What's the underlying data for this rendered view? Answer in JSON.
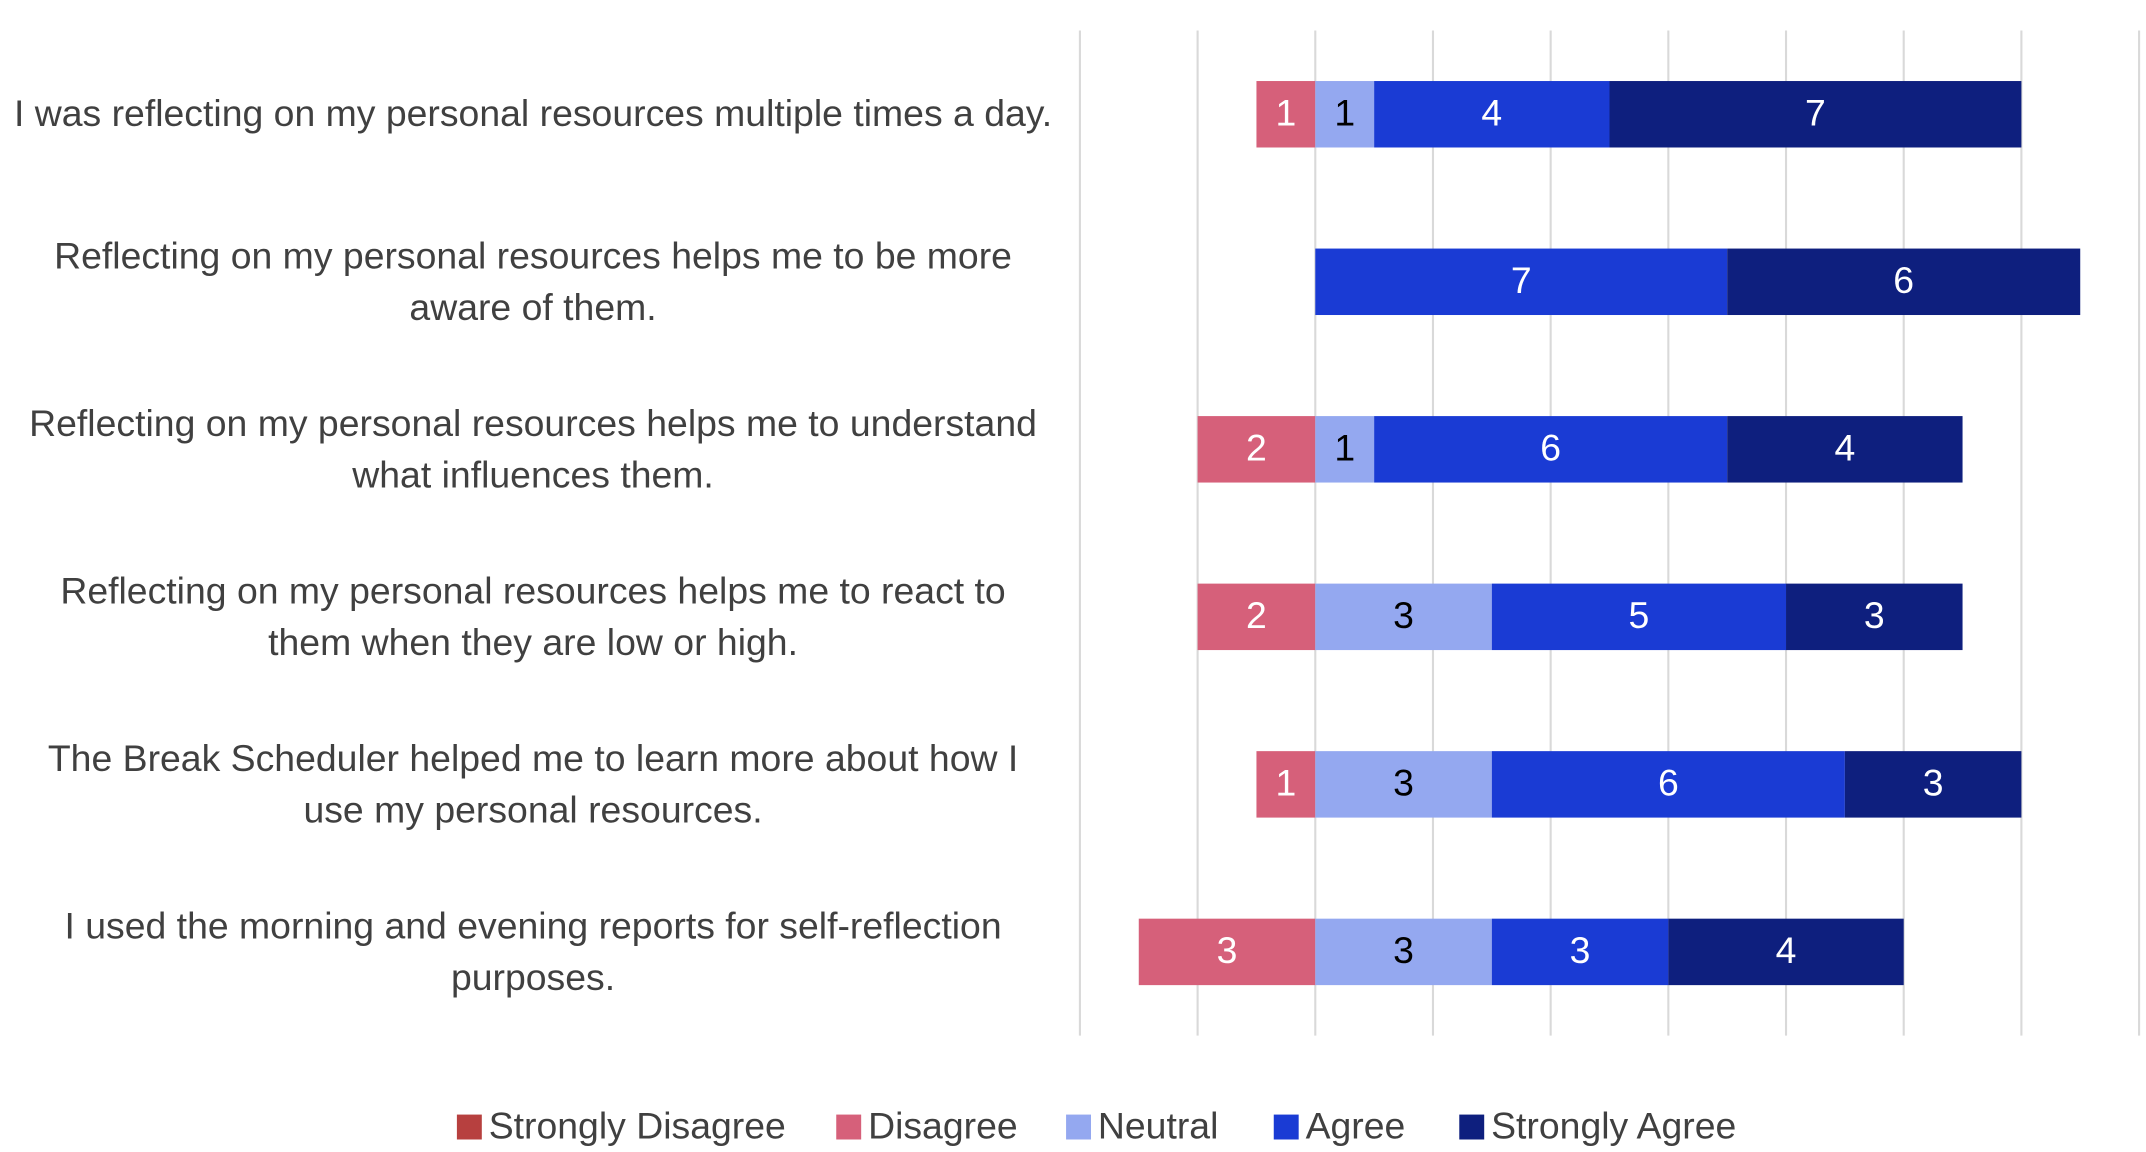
{
  "chart_data": {
    "type": "diverging-bar",
    "categories": [
      "I was reflecting on my personal resources multiple times a day.",
      "Reflecting on my personal resources helps me to be more aware of them.",
      "Reflecting on my personal resources helps me to understand what influences them.",
      "Reflecting on my personal resources helps me to react to them when they are low or high.",
      "The Break Scheduler helped me to learn more about how I use my personal resources.",
      "I used the morning and evening reports for self-reflection purposes."
    ],
    "series": [
      {
        "name": "Strongly Disagree",
        "color": "#b7403f",
        "values": [
          0,
          0,
          0,
          0,
          0,
          0
        ]
      },
      {
        "name": "Disagree",
        "color": "#d6607a",
        "values": [
          1,
          0,
          2,
          2,
          1,
          3
        ]
      },
      {
        "name": "Neutral",
        "color": "#94a8f0",
        "values": [
          1,
          0,
          1,
          3,
          3,
          3
        ]
      },
      {
        "name": "Agree",
        "color": "#1a3bd4",
        "values": [
          4,
          7,
          6,
          5,
          6,
          3
        ]
      },
      {
        "name": "Strongly Agree",
        "color": "#0e1f7e",
        "values": [
          7,
          6,
          4,
          3,
          3,
          4
        ]
      }
    ],
    "xlim": [
      -4,
      14
    ],
    "xticks": [
      -4,
      -2,
      0,
      2,
      4,
      6,
      8,
      10,
      12,
      14
    ],
    "grid": true,
    "legend": "bottom"
  }
}
